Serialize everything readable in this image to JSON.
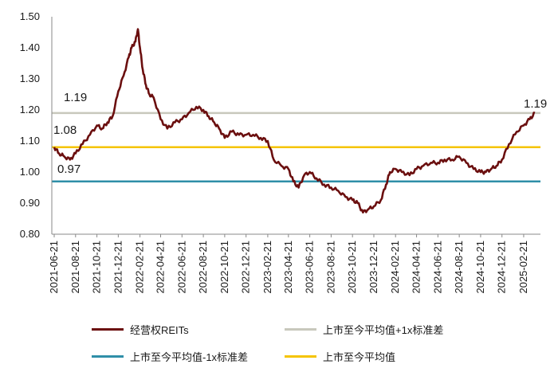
{
  "chart_data": {
    "type": "line",
    "title": "",
    "xlabel": "",
    "ylabel": "",
    "ylim": [
      0.8,
      1.5
    ],
    "y_ticks": [
      "0.80",
      "0.90",
      "1.00",
      "1.10",
      "1.20",
      "1.30",
      "1.40",
      "1.50"
    ],
    "x_ticks": [
      "2021-06-21",
      "2021-08-21",
      "2021-10-21",
      "2021-12-21",
      "2022-02-21",
      "2022-04-21",
      "2022-06-21",
      "2022-08-21",
      "2022-10-21",
      "2022-12-21",
      "2023-02-21",
      "2023-04-21",
      "2023-06-21",
      "2023-08-21",
      "2023-10-21",
      "2023-12-21",
      "2024-02-21",
      "2024-04-21",
      "2024-06-21",
      "2024-08-21",
      "2024-10-21",
      "2024-12-21",
      "2025-02-21"
    ],
    "grid": false,
    "legend_position": "bottom",
    "series": [
      {
        "name": "经营权REITs",
        "color": "#6b0f0f",
        "x": [
          "2021-06-21",
          "2021-07-05",
          "2021-07-20",
          "2021-08-05",
          "2021-08-21",
          "2021-09-10",
          "2021-10-01",
          "2021-10-21",
          "2021-11-05",
          "2021-11-20",
          "2021-12-05",
          "2021-12-21",
          "2022-01-05",
          "2022-01-20",
          "2022-01-28",
          "2022-02-08",
          "2022-02-15",
          "2022-02-21",
          "2022-03-01",
          "2022-03-10",
          "2022-03-20",
          "2022-04-01",
          "2022-04-21",
          "2022-05-10",
          "2022-06-01",
          "2022-06-21",
          "2022-07-10",
          "2022-08-01",
          "2022-08-21",
          "2022-09-05",
          "2022-09-21",
          "2022-10-05",
          "2022-10-21",
          "2022-11-10",
          "2022-12-01",
          "2022-12-21",
          "2023-01-10",
          "2023-02-01",
          "2023-02-21",
          "2023-03-10",
          "2023-04-01",
          "2023-04-21",
          "2023-05-05",
          "2023-05-20",
          "2023-06-05",
          "2023-06-21",
          "2023-07-10",
          "2023-08-01",
          "2023-08-21",
          "2023-09-10",
          "2023-10-01",
          "2023-10-21",
          "2023-11-05",
          "2023-11-20",
          "2023-12-05",
          "2023-12-21",
          "2024-01-10",
          "2024-01-25",
          "2024-02-05",
          "2024-02-21",
          "2024-03-10",
          "2024-04-01",
          "2024-04-21",
          "2024-05-10",
          "2024-06-01",
          "2024-06-21",
          "2024-07-10",
          "2024-08-01",
          "2024-08-21",
          "2024-09-10",
          "2024-10-01",
          "2024-10-21",
          "2024-11-05",
          "2024-11-20",
          "2024-12-05",
          "2024-12-21",
          "2025-01-10",
          "2025-02-01",
          "2025-02-21",
          "2025-03-10",
          "2025-03-25"
        ],
        "values": [
          1.08,
          1.06,
          1.05,
          1.04,
          1.06,
          1.09,
          1.12,
          1.15,
          1.14,
          1.16,
          1.18,
          1.26,
          1.31,
          1.37,
          1.4,
          1.42,
          1.46,
          1.4,
          1.33,
          1.28,
          1.25,
          1.24,
          1.17,
          1.14,
          1.16,
          1.17,
          1.19,
          1.21,
          1.2,
          1.18,
          1.16,
          1.14,
          1.11,
          1.13,
          1.12,
          1.12,
          1.12,
          1.11,
          1.1,
          1.04,
          1.02,
          1.01,
          0.97,
          0.95,
          0.99,
          1.0,
          0.98,
          0.96,
          0.95,
          0.94,
          0.92,
          0.91,
          0.9,
          0.87,
          0.88,
          0.89,
          0.91,
          0.96,
          1.0,
          1.01,
          1.0,
          0.99,
          1.01,
          1.02,
          1.03,
          1.03,
          1.04,
          1.04,
          1.05,
          1.03,
          1.01,
          1.0,
          1.0,
          1.01,
          1.02,
          1.04,
          1.09,
          1.13,
          1.15,
          1.17,
          1.19
        ]
      },
      {
        "name": "上市至今平均值+1x标准差",
        "color": "#c8c8bc",
        "constant": 1.19
      },
      {
        "name": "上市至今平均值-1x标准差",
        "color": "#2f8fa8",
        "constant": 0.97
      },
      {
        "name": "上市至今平均值",
        "color": "#f5c400",
        "constant": 1.08
      }
    ],
    "annotations": [
      "1.19",
      "1.08",
      "0.97",
      "1.19"
    ]
  }
}
